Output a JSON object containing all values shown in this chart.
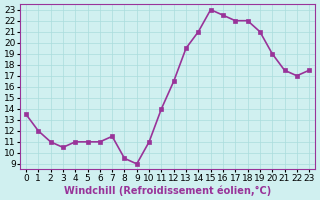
{
  "x": [
    0,
    1,
    2,
    3,
    4,
    5,
    6,
    7,
    8,
    9,
    10,
    11,
    12,
    13,
    14,
    15,
    16,
    17,
    18,
    19,
    20,
    21,
    22,
    23
  ],
  "y": [
    13.5,
    12.0,
    11.0,
    10.5,
    11.0,
    11.0,
    11.0,
    11.5,
    9.5,
    9.0,
    11.0,
    14.0,
    16.5,
    19.5,
    21.0,
    23.0,
    22.5,
    22.0,
    22.0,
    21.0,
    19.0,
    17.5,
    17.0,
    17.5
  ],
  "line_color": "#993399",
  "marker_color": "#993399",
  "bg_color": "#d0f0f0",
  "grid_color": "#aadddd",
  "xlabel": "Windchill (Refroidissement éolien,°C)",
  "ylim": [
    9,
    23
  ],
  "xlim": [
    0,
    23
  ],
  "yticks": [
    9,
    10,
    11,
    12,
    13,
    14,
    15,
    16,
    17,
    18,
    19,
    20,
    21,
    22,
    23
  ],
  "xticks": [
    0,
    1,
    2,
    3,
    4,
    5,
    6,
    7,
    8,
    9,
    10,
    11,
    12,
    13,
    14,
    15,
    16,
    17,
    18,
    19,
    20,
    21,
    22,
    23
  ],
  "xlabel_fontsize": 7,
  "tick_fontsize": 6.5,
  "line_width": 1.2,
  "marker_size": 3
}
